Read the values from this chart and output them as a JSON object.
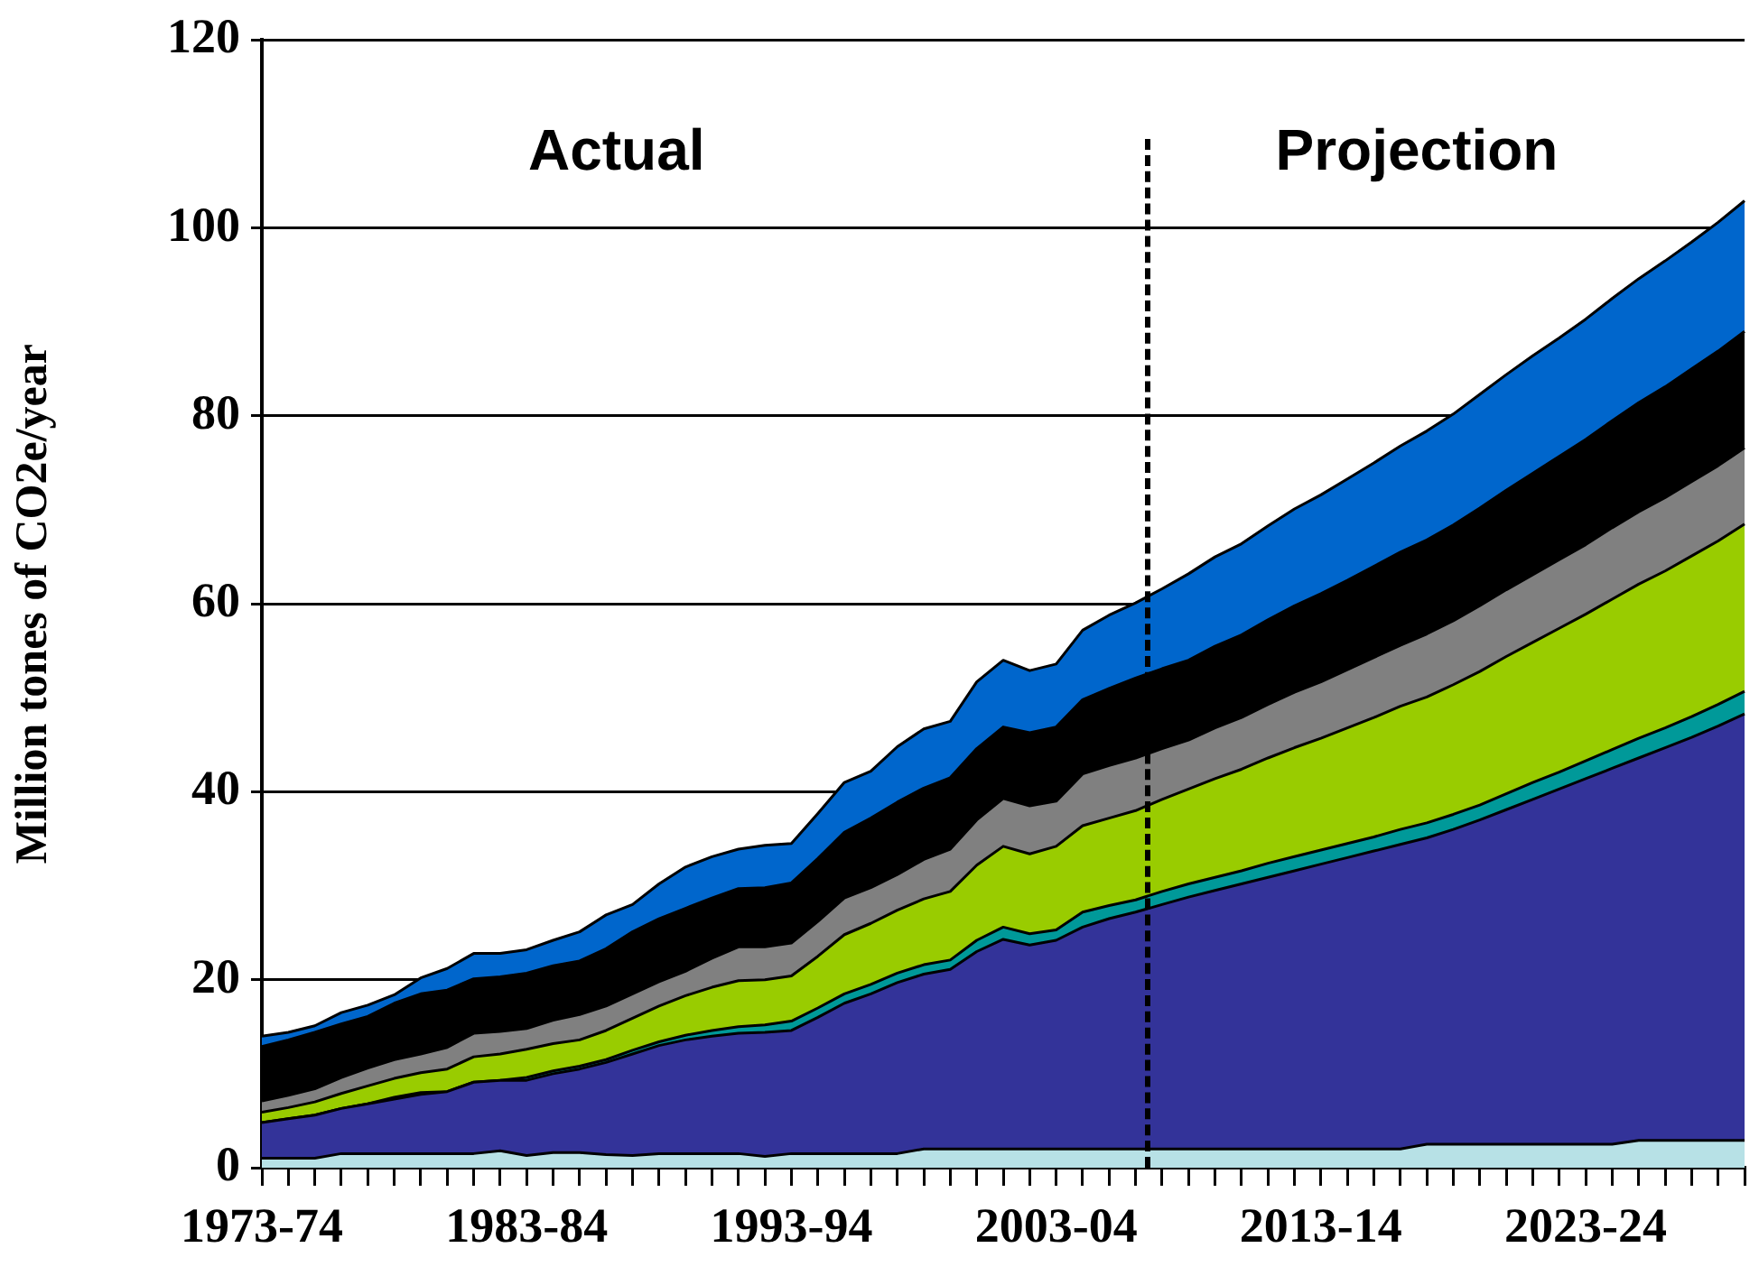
{
  "chart_data": {
    "type": "area",
    "stacked": true,
    "ylabel": "Million tones of CO2e/year",
    "annotations": [
      "Actual",
      "Projection"
    ],
    "categories": [
      "1973-74",
      null,
      null,
      null,
      null,
      null,
      null,
      null,
      null,
      null,
      "1983-84",
      null,
      null,
      null,
      null,
      null,
      null,
      null,
      null,
      null,
      "1993-94",
      null,
      null,
      null,
      null,
      null,
      null,
      null,
      null,
      null,
      "2003-04",
      null,
      null,
      null,
      null,
      null,
      null,
      null,
      null,
      null,
      "2013-14",
      null,
      null,
      null,
      null,
      null,
      null,
      null,
      null,
      null,
      "2023-24",
      null,
      null,
      null,
      null,
      null,
      null
    ],
    "series": [
      {
        "color": "#b7e1e6",
        "values": [
          1.0,
          1.0,
          1.0,
          1.5,
          1.5,
          1.5,
          1.5,
          1.5,
          1.5,
          1.8,
          1.3,
          1.6,
          1.6,
          1.4,
          1.3,
          1.5,
          1.5,
          1.5,
          1.5,
          1.2,
          1.5,
          1.5,
          1.5,
          1.5,
          1.5,
          2.0,
          2.0,
          2.0,
          2.0,
          2.0,
          2.0,
          2.0,
          2.0,
          2.0,
          2.0,
          2.0,
          2.0,
          2.0,
          2.0,
          2.0,
          2.0,
          2.0,
          2.0,
          2.0,
          2.5,
          2.5,
          2.5,
          2.5,
          2.5,
          2.5,
          2.5,
          2.5,
          2.9,
          2.9,
          2.9,
          2.9,
          2.9
        ]
      },
      {
        "color": "#333399",
        "values": [
          3.8,
          4.2,
          4.6,
          4.8,
          5.3,
          5.8,
          6.3,
          6.6,
          7.6,
          7.5,
          8.0,
          8.4,
          8.9,
          9.8,
          10.8,
          11.5,
          12.1,
          12.5,
          12.8,
          13.2,
          13.1,
          14.5,
          16.0,
          17.0,
          18.2,
          18.6,
          19.1,
          21.0,
          22.3,
          21.7,
          22.2,
          23.6,
          24.5,
          25.2,
          26.0,
          26.8,
          27.5,
          28.2,
          28.9,
          29.6,
          30.3,
          31.0,
          31.7,
          32.4,
          32.6,
          33.5,
          34.5,
          35.6,
          36.7,
          37.8,
          38.9,
          40.0,
          40.7,
          41.8,
          42.9,
          44.1,
          45.4
        ]
      },
      {
        "color": "#009999",
        "values": [
          0,
          0,
          0,
          0,
          0,
          0.2,
          0.2,
          0,
          0,
          0,
          0.3,
          0.3,
          0.3,
          0.3,
          0.4,
          0.4,
          0.5,
          0.6,
          0.7,
          0.8,
          1.0,
          1.0,
          1.0,
          1.0,
          1.0,
          1.0,
          1.0,
          1.2,
          1.3,
          1.2,
          1.1,
          1.6,
          1.4,
          1.3,
          1.4,
          1.4,
          1.4,
          1.4,
          1.5,
          1.5,
          1.5,
          1.5,
          1.5,
          1.6,
          1.6,
          1.6,
          1.6,
          1.7,
          1.8,
          1.8,
          1.9,
          2.0,
          2.1,
          2.1,
          2.2,
          2.3,
          2.4
        ]
      },
      {
        "color": "#99cc00",
        "values": [
          1.1,
          1.2,
          1.4,
          1.6,
          1.9,
          2.0,
          2.1,
          2.4,
          2.7,
          2.8,
          3.0,
          2.9,
          2.8,
          3.1,
          3.4,
          3.8,
          4.2,
          4.6,
          4.9,
          4.8,
          4.8,
          5.5,
          6.3,
          6.5,
          6.7,
          7.0,
          7.3,
          8.0,
          8.6,
          8.5,
          8.9,
          9.2,
          9.3,
          9.5,
          9.8,
          10.1,
          10.5,
          10.8,
          11.2,
          11.6,
          11.9,
          12.3,
          12.7,
          13.1,
          13.4,
          13.8,
          14.2,
          14.6,
          14.9,
          15.3,
          15.6,
          16.0,
          16.4,
          16.7,
          17.1,
          17.4,
          17.8
        ]
      },
      {
        "color": "#808080",
        "values": [
          1.2,
          1.3,
          1.4,
          1.7,
          1.9,
          2.0,
          2.0,
          2.3,
          2.5,
          2.4,
          2.2,
          2.5,
          2.7,
          2.6,
          2.6,
          2.6,
          2.6,
          3.1,
          3.6,
          3.5,
          3.5,
          3.7,
          3.9,
          3.8,
          3.8,
          4.2,
          4.5,
          4.8,
          5.1,
          5.1,
          4.8,
          5.5,
          5.6,
          5.6,
          5.4,
          5.2,
          5.4,
          5.5,
          5.7,
          5.9,
          6.0,
          6.2,
          6.4,
          6.5,
          6.7,
          6.8,
          7.0,
          7.1,
          7.2,
          7.3,
          7.4,
          7.6,
          7.7,
          7.8,
          7.9,
          8.0,
          8.1
        ]
      },
      {
        "color": "#000000",
        "values": [
          5.8,
          5.9,
          6.0,
          5.7,
          5.5,
          6.0,
          6.4,
          6.1,
          5.8,
          5.8,
          5.9,
          5.8,
          5.7,
          6.1,
          6.6,
          6.7,
          6.7,
          6.4,
          6.2,
          6.3,
          6.4,
          6.7,
          7.0,
          7.4,
          7.7,
          7.6,
          7.6,
          7.6,
          7.6,
          7.8,
          7.9,
          7.9,
          8.2,
          8.5,
          8.5,
          8.5,
          8.7,
          8.8,
          9.0,
          9.2,
          9.4,
          9.5,
          9.7,
          9.9,
          10.0,
          10.2,
          10.4,
          10.6,
          10.8,
          11.0,
          11.2,
          11.4,
          11.6,
          11.8,
          12.0,
          12.2,
          12.4
        ]
      },
      {
        "color": "#0066cc",
        "values": [
          1.1,
          0.8,
          0.7,
          1.2,
          1.2,
          0.9,
          1.7,
          2.3,
          2.7,
          2.5,
          2.5,
          2.7,
          3.1,
          3.6,
          2.9,
          3.7,
          4.4,
          4.4,
          4.2,
          4.5,
          4.2,
          4.8,
          5.3,
          5.0,
          5.9,
          6.3,
          6.0,
          7.1,
          7.1,
          6.6,
          6.7,
          7.4,
          7.8,
          8.0,
          8.5,
          9.2,
          9.5,
          9.7,
          10.0,
          10.3,
          10.5,
          10.8,
          11.0,
          11.3,
          11.6,
          11.8,
          12.1,
          12.3,
          12.5,
          12.6,
          12.8,
          13.0,
          13.2,
          13.4,
          13.5,
          13.7,
          13.9
        ]
      }
    ],
    "ylim": [
      0,
      120
    ],
    "yticks": [
      0,
      20,
      40,
      60,
      80,
      100,
      120
    ],
    "grid": "y"
  }
}
